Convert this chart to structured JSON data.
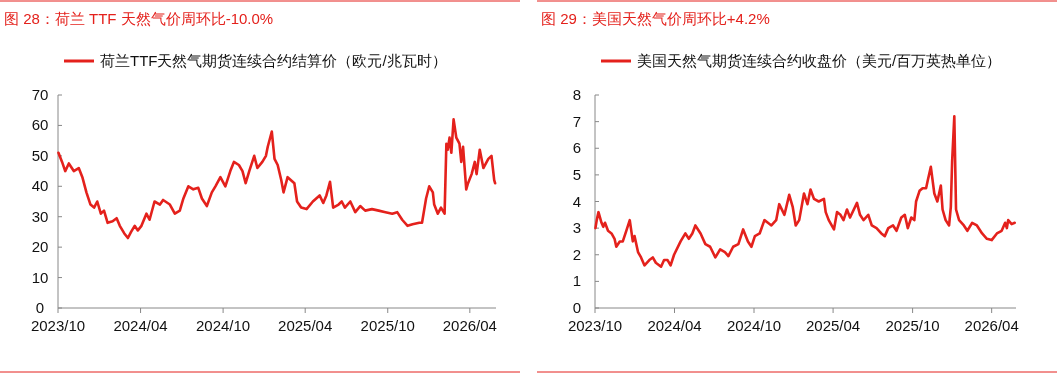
{
  "chart_data": [
    {
      "type": "line",
      "title": "图 28：荷兰 TTF 天然气价周环比-10.0%",
      "legend": "top left",
      "xlim": [
        "2023-10-01",
        "2026-05-29"
      ],
      "ylim": [
        0,
        70
      ],
      "yticks": [
        0,
        10,
        20,
        30,
        40,
        50,
        60,
        70
      ],
      "xticks": [
        {
          "value": "2023-10-01",
          "label": "2023/10"
        },
        {
          "value": "2024-04-01",
          "label": "2024/04"
        },
        {
          "value": "2024-10-01",
          "label": "2024/10"
        },
        {
          "value": "2025-04-01",
          "label": "2025/04"
        },
        {
          "value": "2025-10-01",
          "label": "2025/10"
        },
        {
          "value": "2026-04-01",
          "label": "2026/04"
        }
      ],
      "x": [
        "2023-10-02",
        "2023-10-10",
        "2023-10-17",
        "2023-10-25",
        "2023-11-05",
        "2023-11-16",
        "2023-11-24",
        "2023-12-03",
        "2023-12-12",
        "2023-12-20",
        "2023-12-27",
        "2024-01-04",
        "2024-01-11",
        "2024-01-19",
        "2024-01-30",
        "2024-02-08",
        "2024-02-15",
        "2024-02-25",
        "2024-03-04",
        "2024-03-11",
        "2024-03-19",
        "2024-03-26",
        "2024-04-03",
        "2024-04-14",
        "2024-04-21",
        "2024-05-02",
        "2024-05-14",
        "2024-05-21",
        "2024-06-05",
        "2024-06-16",
        "2024-06-27",
        "2024-07-05",
        "2024-07-16",
        "2024-07-27",
        "2024-08-07",
        "2024-08-15",
        "2024-08-26",
        "2024-09-06",
        "2024-09-14",
        "2024-09-25",
        "2024-10-06",
        "2024-10-17",
        "2024-10-25",
        "2024-11-05",
        "2024-11-13",
        "2024-11-20",
        "2024-11-28",
        "2024-12-09",
        "2024-12-16",
        "2024-12-27",
        "2025-01-04",
        "2025-01-08",
        "2025-01-17",
        "2025-01-23",
        "2025-01-30",
        "2025-02-07",
        "2025-02-12",
        "2025-02-21",
        "2025-03-08",
        "2025-03-14",
        "2025-03-23",
        "2025-04-04",
        "2025-04-18",
        "2025-05-03",
        "2025-05-11",
        "2025-05-18",
        "2025-05-26",
        "2025-06-02",
        "2025-06-14",
        "2025-06-21",
        "2025-06-28",
        "2025-07-10",
        "2025-07-21",
        "2025-08-01",
        "2025-08-12",
        "2025-08-27",
        "2025-09-11",
        "2025-09-26",
        "2025-10-11",
        "2025-10-22",
        "2025-11-02",
        "2025-11-14",
        "2025-11-25",
        "2025-12-10",
        "2025-12-16",
        "2025-12-25",
        "2026-01-01",
        "2026-01-09",
        "2026-01-12",
        "2026-01-20",
        "2026-01-27",
        "2026-02-04",
        "2026-02-08",
        "2026-02-11",
        "2026-02-15",
        "2026-02-19",
        "2026-02-24",
        "2026-03-02",
        "2026-03-09",
        "2026-03-13",
        "2026-03-17",
        "2026-03-21",
        "2026-03-24",
        "2026-03-28",
        "2026-04-05",
        "2026-04-12",
        "2026-04-16",
        "2026-04-23",
        "2026-05-01",
        "2026-05-12",
        "2026-05-19",
        "2026-05-25",
        "2026-05-27"
      ],
      "series": [
        {
          "name": "荷兰TTF天然气期货连续合约结算价（欧元/兆瓦时）",
          "color": "#e4211c",
          "values": [
            51,
            48,
            45,
            47.5,
            45,
            46,
            43,
            38,
            34,
            33,
            35,
            31,
            32,
            28,
            28.5,
            29.5,
            27,
            24.5,
            23,
            25,
            27,
            25.5,
            27,
            31,
            29,
            35,
            34,
            35.5,
            34,
            31,
            32,
            36,
            40,
            39,
            39.5,
            36,
            33.5,
            38,
            40,
            43,
            40,
            45,
            48,
            47,
            45,
            41,
            45,
            50,
            46,
            48,
            50,
            53,
            58,
            49,
            47,
            42,
            38,
            43,
            41,
            35,
            33,
            32.5,
            35,
            37,
            34.5,
            37,
            41.5,
            33,
            34,
            35,
            33,
            35,
            31.5,
            33.5,
            32,
            32.5,
            32,
            31.5,
            31,
            31.5,
            29,
            27,
            27.5,
            28,
            28,
            36,
            40,
            38,
            34,
            31,
            33,
            31,
            54,
            52,
            56,
            51,
            62,
            56,
            54,
            48,
            53,
            45,
            39,
            41,
            44,
            48,
            44,
            52,
            46,
            49,
            50,
            42,
            41
          ]
        }
      ]
    },
    {
      "type": "line",
      "title": "图 29：美国天然气价周环比+4.2%",
      "legend": "top left",
      "xlim": [
        "2023-10-01",
        "2026-05-27"
      ],
      "ylim": [
        0,
        8
      ],
      "yticks": [
        0,
        1,
        2,
        3,
        4,
        5,
        6,
        7,
        8
      ],
      "xticks": [
        {
          "value": "2023-10-01",
          "label": "2023/10"
        },
        {
          "value": "2024-04-01",
          "label": "2024/04"
        },
        {
          "value": "2024-10-01",
          "label": "2024/10"
        },
        {
          "value": "2025-04-01",
          "label": "2025/04"
        },
        {
          "value": "2025-10-01",
          "label": "2025/10"
        },
        {
          "value": "2026-04-01",
          "label": "2026/04"
        }
      ],
      "x": [
        "2023-10-02",
        "2023-10-05",
        "2023-10-09",
        "2023-10-16",
        "2023-10-20",
        "2023-10-24",
        "2023-10-31",
        "2023-11-08",
        "2023-11-15",
        "2023-11-19",
        "2023-11-27",
        "2023-12-04",
        "2023-12-12",
        "2023-12-20",
        "2023-12-27",
        "2023-12-31",
        "2024-01-08",
        "2024-01-15",
        "2024-01-23",
        "2024-02-03",
        "2024-02-11",
        "2024-02-18",
        "2024-03-01",
        "2024-03-08",
        "2024-03-16",
        "2024-03-23",
        "2024-03-31",
        "2024-04-15",
        "2024-04-26",
        "2024-05-04",
        "2024-05-12",
        "2024-05-19",
        "2024-05-31",
        "2024-06-11",
        "2024-06-22",
        "2024-07-04",
        "2024-07-15",
        "2024-07-26",
        "2024-08-03",
        "2024-08-14",
        "2024-08-26",
        "2024-09-06",
        "2024-09-17",
        "2024-09-25",
        "2024-10-03",
        "2024-10-14",
        "2024-10-25",
        "2024-11-02",
        "2024-11-10",
        "2024-11-21",
        "2024-11-28",
        "2024-12-10",
        "2024-12-21",
        "2024-12-29",
        "2025-01-05",
        "2025-01-13",
        "2025-01-24",
        "2025-02-01",
        "2025-02-08",
        "2025-02-16",
        "2025-02-27",
        "2025-03-11",
        "2025-03-15",
        "2025-03-22",
        "2025-04-03",
        "2025-04-10",
        "2025-04-18",
        "2025-04-25",
        "2025-05-03",
        "2025-05-10",
        "2025-05-26",
        "2025-06-02",
        "2025-06-10",
        "2025-06-21",
        "2025-06-29",
        "2025-07-10",
        "2025-07-21",
        "2025-07-29",
        "2025-08-06",
        "2025-08-17",
        "2025-08-25",
        "2025-09-05",
        "2025-09-13",
        "2025-09-20",
        "2025-09-28",
        "2025-10-05",
        "2025-10-09",
        "2025-10-17",
        "2025-10-24",
        "2025-11-01",
        "2025-11-05",
        "2025-11-12",
        "2025-11-20",
        "2025-11-27",
        "2025-12-05",
        "2025-12-09",
        "2025-12-16",
        "2025-12-24",
        "2025-12-28",
        "2025-12-31",
        "2026-01-05",
        "2026-01-09",
        "2026-01-16",
        "2026-01-27",
        "2026-02-04",
        "2026-02-15",
        "2026-02-26",
        "2026-03-10",
        "2026-03-21",
        "2026-04-01",
        "2026-04-13",
        "2026-04-24",
        "2026-05-02",
        "2026-05-06",
        "2026-05-09",
        "2026-05-17",
        "2026-05-24"
      ],
      "series": [
        {
          "name": "美国天然气期货连续合约收盘价（美元/百万英热单位）",
          "color": "#e4211c",
          "values": [
            3.0,
            3.3,
            3.6,
            3.2,
            3.05,
            3.2,
            2.9,
            2.8,
            2.6,
            2.3,
            2.5,
            2.5,
            2.9,
            3.3,
            2.5,
            2.7,
            2.1,
            1.9,
            1.6,
            1.8,
            1.9,
            1.7,
            1.55,
            1.8,
            1.8,
            1.6,
            2.0,
            2.5,
            2.8,
            2.6,
            2.8,
            3.1,
            2.8,
            2.4,
            2.3,
            1.9,
            2.2,
            2.1,
            1.95,
            2.3,
            2.4,
            2.95,
            2.5,
            2.3,
            2.7,
            2.8,
            3.3,
            3.2,
            3.1,
            3.3,
            3.9,
            3.5,
            4.25,
            3.8,
            3.1,
            3.3,
            4.3,
            3.9,
            4.45,
            4.1,
            4.0,
            4.1,
            3.6,
            3.3,
            2.95,
            3.6,
            3.5,
            3.3,
            3.7,
            3.4,
            3.95,
            3.5,
            3.3,
            3.5,
            3.1,
            3.0,
            2.8,
            2.7,
            3.0,
            3.1,
            2.9,
            3.4,
            3.5,
            3.0,
            3.4,
            3.3,
            4.0,
            4.4,
            4.5,
            4.5,
            4.8,
            5.3,
            4.3,
            4.0,
            4.6,
            3.7,
            3.3,
            3.1,
            3.8,
            5.5,
            7.2,
            3.7,
            3.3,
            3.1,
            2.9,
            3.2,
            3.1,
            2.8,
            2.6,
            2.55,
            2.8,
            2.9,
            3.2,
            3.0,
            3.3,
            3.15,
            3.2
          ]
        }
      ]
    }
  ]
}
